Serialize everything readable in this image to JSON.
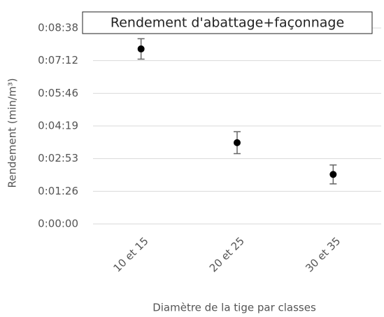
{
  "chart_data": {
    "type": "scatter",
    "title": "Rendement d'abattage+façonnage",
    "x_label": "Diamètre de la tige par classes",
    "y_label": "Rendement (min/m³)",
    "categories": [
      "10 et 15",
      "20 et 25",
      "30 et 35"
    ],
    "values": [
      463,
      215,
      131
    ],
    "errors": [
      27,
      29,
      25
    ],
    "color": "#000000",
    "ylim": [
      0,
      518.4
    ],
    "yticks": [
      {
        "value": 0,
        "label": "0:00:00"
      },
      {
        "value": 86.4,
        "label": "0:01:26"
      },
      {
        "value": 172.8,
        "label": "0:02:53"
      },
      {
        "value": 259.2,
        "label": "0:04:19"
      },
      {
        "value": 345.6,
        "label": "0:05:46"
      },
      {
        "value": 432,
        "label": "0:07:12"
      },
      {
        "value": 518.4,
        "label": "0:08:38"
      }
    ],
    "grid": true
  }
}
